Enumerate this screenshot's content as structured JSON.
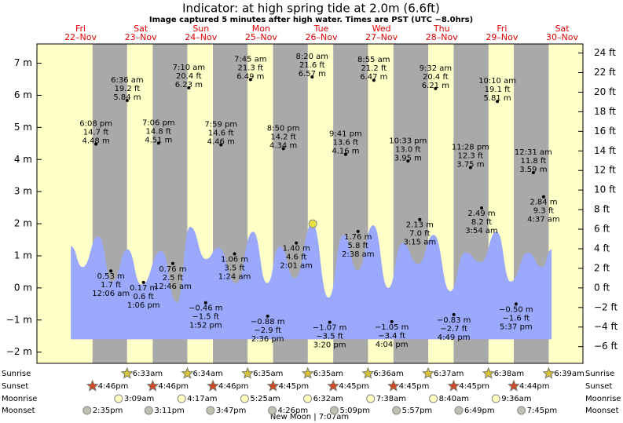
{
  "chart_data": {
    "type": "area",
    "title": "Indicator: at high  spring tide at 2.0m (6.6ft)",
    "subtitle": "Image captured 5 minutes after high water. Times are PST (UTC −8.0hrs)",
    "days": {
      "names": [
        "Fri",
        "Sat",
        "Sun",
        "Mon",
        "Tue",
        "Wed",
        "Thu",
        "Fri",
        "Sat"
      ],
      "dates": [
        "22–Nov",
        "23–Nov",
        "24–Nov",
        "25–Nov",
        "26–Nov",
        "27–Nov",
        "28–Nov",
        "29–Nov",
        "30–Nov"
      ]
    },
    "xlim": [
      -5.4,
      212.3
    ],
    "ylim": [
      -2.35,
      7.6
    ],
    "yticks": [
      {
        "value": -2,
        "label": "−2 m"
      },
      {
        "value": -1,
        "label": "−1 m"
      },
      {
        "value": 0,
        "label": "0 m"
      },
      {
        "value": 1,
        "label": "1 m"
      },
      {
        "value": 2,
        "label": "2 m"
      },
      {
        "value": 3,
        "label": "3 m"
      },
      {
        "value": 4,
        "label": "4 m"
      },
      {
        "value": 5,
        "label": "5 m"
      },
      {
        "value": 6,
        "label": "6 m"
      },
      {
        "value": 7,
        "label": "7 m"
      }
    ],
    "y2lim": [
      -7.71,
      24.93
    ],
    "y2ticks": [
      {
        "value": -6,
        "label": "−6 ft"
      },
      {
        "value": -4,
        "label": "−4 ft"
      },
      {
        "value": -2,
        "label": "−2 ft"
      },
      {
        "value": 0,
        "label": "0 ft"
      },
      {
        "value": 2,
        "label": "2 ft"
      },
      {
        "value": 4,
        "label": "4 ft"
      },
      {
        "value": 6,
        "label": "6 ft"
      },
      {
        "value": 8,
        "label": "8 ft"
      },
      {
        "value": 10,
        "label": "10 ft"
      },
      {
        "value": 12,
        "label": "12 ft"
      },
      {
        "value": 14,
        "label": "14 ft"
      },
      {
        "value": 16,
        "label": "16 ft"
      },
      {
        "value": 18,
        "label": "18 ft"
      },
      {
        "value": 20,
        "label": "20 ft"
      },
      {
        "value": 22,
        "label": "22 ft"
      },
      {
        "value": 24,
        "label": "24 ft"
      }
    ],
    "day_color": "#ffffc8",
    "night_color": "#a9a9a9",
    "series": [
      {
        "color": "#9aa9fb",
        "floor": -1.6,
        "x": [
          8.1,
          12.8,
          19.1,
          24.7,
          30.7,
          36.3,
          44.2,
          50.4,
          55.7,
          62.0,
          67.0,
          73.9,
          80.8,
          86.4,
          91.5,
          97.4,
          104.4,
          110.9,
          116.8,
          122.5,
          128.7,
          134.7,
          140.3,
          146.6,
          152.8,
          159.4,
          165.4,
          171.6,
          177.9,
          183.5,
          190.4,
          196.0,
          199.8
        ],
        "values": [
          1.3,
          0.65,
          1.6,
          0.2,
          1.2,
          0.1,
          1.15,
          -0.45,
          1.9,
          0.9,
          1.25,
          0.15,
          1.75,
          0.15,
          1.3,
          0.3,
          2.0,
          -0.3,
          1.65,
          0.55,
          1.95,
          0.0,
          1.4,
          0.75,
          1.65,
          -0.1,
          1.1,
          0.8,
          1.75,
          0.2,
          1.1,
          0.65,
          1.2
        ]
      }
    ],
    "extremes": {
      "x": [
        18.13,
        24.1,
        30.6,
        37.1,
        43.1,
        48.77,
        55.17,
        61.87,
        67.98,
        73.4,
        79.75,
        86.6,
        92.83,
        98.02,
        104.33,
        111.33,
        117.68,
        122.63,
        128.92,
        136.07,
        142.55,
        147.25,
        153.53,
        160.82,
        167.47,
        171.9,
        178.17,
        185.62,
        192.52,
        196.62
      ],
      "values": [
        4.48,
        0.53,
        5.84,
        0.17,
        4.51,
        0.76,
        6.23,
        -0.46,
        4.46,
        1.06,
        6.49,
        -0.88,
        4.34,
        1.4,
        6.57,
        -1.07,
        4.16,
        1.76,
        6.47,
        -1.05,
        3.95,
        2.13,
        6.21,
        -0.83,
        3.75,
        2.49,
        5.81,
        -0.5,
        3.59,
        2.84
      ],
      "value_labels": [
        "4.48 m",
        "0.53 m",
        "5.84 m",
        "0.17 m",
        "4.51 m",
        "0.76 m",
        "6.23 m",
        "−0.46 m",
        "4.46 m",
        "1.06 m",
        "6.49 m",
        "−0.88 m",
        "4.34 m",
        "1.40 m",
        "6.57 m",
        "−1.07 m",
        "4.16 m",
        "1.76 m",
        "6.47 m",
        "−1.05 m",
        "3.95 m",
        "2.13 m",
        "6.21 m",
        "−0.83 m",
        "3.75 m",
        "2.49 m",
        "5.81 m",
        "−0.50 m",
        "3.59 m",
        "2.84 m"
      ],
      "ft_labels": [
        "14.7 ft",
        "1.7 ft",
        "19.2 ft",
        "0.6 ft",
        "14.8 ft",
        "2.5 ft",
        "20.4 ft",
        "−1.5 ft",
        "14.6 ft",
        "3.5 ft",
        "21.3 ft",
        "−2.9 ft",
        "14.2 ft",
        "4.6 ft",
        "21.6 ft",
        "−3.5 ft",
        "13.6 ft",
        "5.8 ft",
        "21.2 ft",
        "−3.4 ft",
        "13.0 ft",
        "7.0 ft",
        "20.4 ft",
        "−2.7 ft",
        "12.3 ft",
        "8.2 ft",
        "19.1 ft",
        "−1.6 ft",
        "11.8 ft",
        "9.3 ft"
      ],
      "time_labels": [
        "6:08 pm",
        "12:06 am",
        "6:36 am",
        "1:06 pm",
        "7:06 pm",
        "12:46 am",
        "7:10 am",
        "1:52 pm",
        "7:59 pm",
        "1:24 am",
        "7:45 am",
        "2:36 pm",
        "8:50 pm",
        "2:01 am",
        "8:20 am",
        "3:20 pm",
        "9:41 pm",
        "2:38 am",
        "8:55 am",
        "4:04 pm",
        "10:33 pm",
        "3:15 am",
        "9:32 am",
        "4:49 pm",
        "11:28 pm",
        "3:54 am",
        "10:10 am",
        "5:37 pm",
        "12:31 am",
        "4:37 am"
      ]
    },
    "indicator": {
      "x": 104.6,
      "value": 2.0,
      "color": "#e8e040"
    },
    "rows": [
      {
        "label": "Sunrise",
        "icon": "star",
        "color": "#d8c23a",
        "x": [
          30.55,
          54.57,
          78.58,
          102.58,
          126.6,
          150.62,
          174.63,
          198.65
        ],
        "times": [
          "6:33am",
          "6:34am",
          "6:35am",
          "6:35am",
          "6:36am",
          "6:37am",
          "6:38am",
          "6:39am"
        ]
      },
      {
        "label": "Sunset",
        "icon": "star",
        "color": "#d0482a",
        "x": [
          16.77,
          40.77,
          64.77,
          88.75,
          112.75,
          136.75,
          160.75,
          184.73
        ],
        "times": [
          "4:46pm",
          "4:46pm",
          "4:46pm",
          "4:45pm",
          "4:45pm",
          "4:45pm",
          "4:45pm",
          "4:44pm"
        ]
      },
      {
        "label": "Moonrise",
        "icon": "circle",
        "color": "#ffffc0",
        "x": [
          27.15,
          52.28,
          77.42,
          102.53,
          127.63,
          152.67,
          177.6
        ],
        "times": [
          "3:09am",
          "4:17am",
          "5:25am",
          "6:32am",
          "7:38am",
          "8:40am",
          "9:36am"
        ]
      },
      {
        "label": "Moonset",
        "icon": "circle",
        "color": "#c0c0b0",
        "x": [
          14.58,
          39.18,
          63.78,
          88.43,
          113.15,
          137.95,
          162.82,
          187.75
        ],
        "times": [
          "2:35pm",
          "3:11pm",
          "3:47pm",
          "4:26pm",
          "5:09pm",
          "5:57pm",
          "6:49pm",
          "7:45pm"
        ]
      }
    ],
    "moon_phase": "New Moon | 7:07am"
  }
}
